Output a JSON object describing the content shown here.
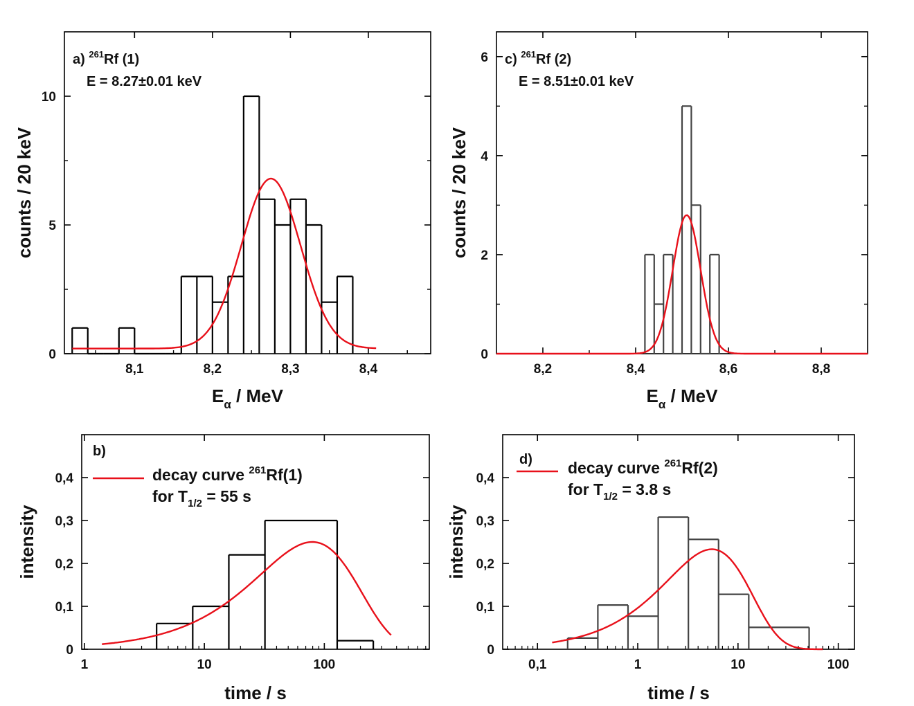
{
  "chart_data": [
    {
      "id": "a",
      "type": "histogram+line",
      "panel_label": "a)",
      "nuclide": {
        "mass": "261",
        "symbol": "Rf",
        "suffix": " (1)"
      },
      "annotation": "E = 8.27±0.01 keV",
      "xlabel": {
        "main": "E",
        "sub": "α",
        "rest": " / MeV"
      },
      "ylabel": "counts / 20 keV",
      "xlim": [
        8.01,
        8.48
      ],
      "ylim": [
        0,
        12.5
      ],
      "x_scale": "linear",
      "x_ticks": [
        8.1,
        8.2,
        8.3,
        8.4
      ],
      "x_tick_labels": [
        "8,1",
        "8,2",
        "8,3",
        "8,4"
      ],
      "y_ticks": [
        0,
        5,
        10
      ],
      "y_tick_labels": [
        "0",
        "5",
        "10"
      ],
      "y_minor_ticks": [
        2.5,
        7.5
      ],
      "histogram": {
        "color": "#000000",
        "edges": [
          8.02,
          8.04,
          8.06,
          8.08,
          8.1,
          8.12,
          8.14,
          8.16,
          8.18,
          8.2,
          8.22,
          8.24,
          8.26,
          8.28,
          8.3,
          8.32,
          8.34,
          8.36,
          8.38
        ],
        "counts": [
          1,
          0,
          0,
          1,
          0,
          0,
          0,
          3,
          3,
          2,
          3,
          10,
          6,
          5,
          6,
          5,
          2,
          3
        ]
      },
      "fit": {
        "type": "gaussian+baseline",
        "color": "#e8101a",
        "x_range": [
          8.02,
          8.41
        ],
        "amplitude": 6.6,
        "center": 8.275,
        "sigma": 0.038,
        "baseline": 0.2
      }
    },
    {
      "id": "b",
      "type": "histogram+line",
      "panel_label": "b)",
      "legend": {
        "line1": "decay curve ",
        "mass": "261",
        "symbol": "Rf(1)",
        "line2a": "for T",
        "line2sub": "1/2",
        "line2b": " = 55 s"
      },
      "xlabel": "time / s",
      "ylabel": "intensity",
      "xlim": [
        0.95,
        750
      ],
      "ylim": [
        0,
        0.5
      ],
      "x_scale": "log",
      "x_ticks": [
        1,
        10,
        100
      ],
      "x_tick_labels": [
        "1",
        "10",
        "100"
      ],
      "y_ticks": [
        0,
        0.1,
        0.2,
        0.3,
        0.4
      ],
      "y_tick_labels": [
        "0",
        "0,1",
        "0,2",
        "0,3",
        "0,4"
      ],
      "histogram": {
        "color": "#000000",
        "edges": [
          4,
          8,
          16,
          32,
          128,
          256
        ],
        "counts": [
          0.06,
          0.1,
          0.22,
          0.3,
          0.02
        ]
      },
      "fit": {
        "type": "decay",
        "color": "#e8101a",
        "x_range": [
          1.4,
          360
        ],
        "amplitude": 0.25,
        "half_life": 55
      }
    },
    {
      "id": "c",
      "type": "histogram+line",
      "panel_label": "c)",
      "nuclide": {
        "mass": "261",
        "symbol": "Rf",
        "suffix": " (2)"
      },
      "annotation": "E = 8.51±0.01 keV",
      "xlabel": {
        "main": "E",
        "sub": "α",
        "rest": " / MeV"
      },
      "ylabel": "counts / 20 keV",
      "xlim": [
        8.1,
        8.9
      ],
      "ylim": [
        0,
        6.5
      ],
      "x_scale": "linear",
      "x_ticks": [
        8.2,
        8.4,
        8.6,
        8.8
      ],
      "x_tick_labels": [
        "8,2",
        "8,4",
        "8,6",
        "8,8"
      ],
      "y_ticks": [
        0,
        2,
        4,
        6
      ],
      "y_tick_labels": [
        "0",
        "2",
        "4",
        "6"
      ],
      "y_minor_ticks": [
        1,
        3,
        5
      ],
      "histogram": {
        "color": "#444444",
        "edges": [
          8.42,
          8.44,
          8.46,
          8.48,
          8.5,
          8.52,
          8.54,
          8.56,
          8.58
        ],
        "counts": [
          2,
          1,
          2,
          0,
          5,
          3,
          0,
          2
        ]
      },
      "fit": {
        "type": "gaussian",
        "color": "#e8101a",
        "x_range": [
          8.1,
          8.9
        ],
        "amplitude": 2.8,
        "center": 8.51,
        "sigma": 0.03,
        "baseline": 0
      }
    },
    {
      "id": "d",
      "type": "histogram+line",
      "panel_label": "d)",
      "legend": {
        "line1": "decay curve ",
        "mass": "261",
        "symbol": "Rf(2)",
        "line2a": "for T",
        "line2sub": "1/2",
        "line2b": " = 3.8 s"
      },
      "xlabel": "time / s",
      "ylabel": "intensity",
      "xlim": [
        0.045,
        145
      ],
      "ylim": [
        0,
        0.5
      ],
      "x_scale": "log",
      "x_ticks": [
        0.1,
        1,
        10,
        100
      ],
      "x_tick_labels": [
        "0,1",
        "1",
        "10",
        "100"
      ],
      "y_ticks": [
        0,
        0.1,
        0.2,
        0.3,
        0.4
      ],
      "y_tick_labels": [
        "0",
        "0,1",
        "0,2",
        "0,3",
        "0,4"
      ],
      "histogram": {
        "color": "#444444",
        "edges": [
          0.2,
          0.4,
          0.8,
          1.6,
          3.2,
          6.4,
          12.8,
          51.2
        ],
        "counts": [
          0.026,
          0.103,
          0.077,
          0.308,
          0.256,
          0.128,
          0.051
        ]
      },
      "fit": {
        "type": "decay",
        "color": "#e8101a",
        "x_range": [
          0.14,
          70
        ],
        "amplitude": 0.233,
        "half_life": 3.8
      }
    }
  ]
}
